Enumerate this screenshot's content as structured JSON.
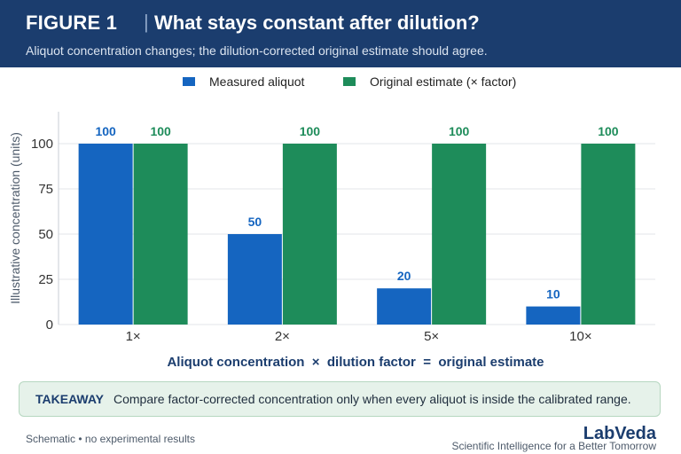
{
  "header": {
    "figure_label": "FIGURE 1",
    "separator": "|",
    "title": "What stays constant after dilution?",
    "subtitle": "Aliquot concentration changes; the dilution-corrected original estimate should agree."
  },
  "chart_data": {
    "type": "bar",
    "categories": [
      "1×",
      "2×",
      "5×",
      "10×"
    ],
    "series": [
      {
        "name": "Measured aliquot",
        "values": [
          100,
          50,
          20,
          10
        ],
        "color": "#1565c0"
      },
      {
        "name": "Original estimate (× factor)",
        "values": [
          100,
          100,
          100,
          100
        ],
        "color": "#1e8c5a"
      }
    ],
    "xlabel": "Aliquot concentration  ×  dilution factor  =  original estimate",
    "ylabel": "Illustrative concentration (units)",
    "ylim": [
      0,
      100
    ],
    "yticks": [
      0,
      25,
      50,
      75,
      100
    ],
    "grid": true,
    "legend_position": "top-center",
    "data_labels": true
  },
  "takeaway": {
    "label": "TAKEAWAY",
    "text": "Compare factor-corrected concentration only when every aliquot is inside the calibrated range."
  },
  "footer": {
    "note": "Schematic • no experimental results",
    "brand": "LabVeda",
    "tagline": "Scientific Intelligence for a Better Tomorrow"
  }
}
